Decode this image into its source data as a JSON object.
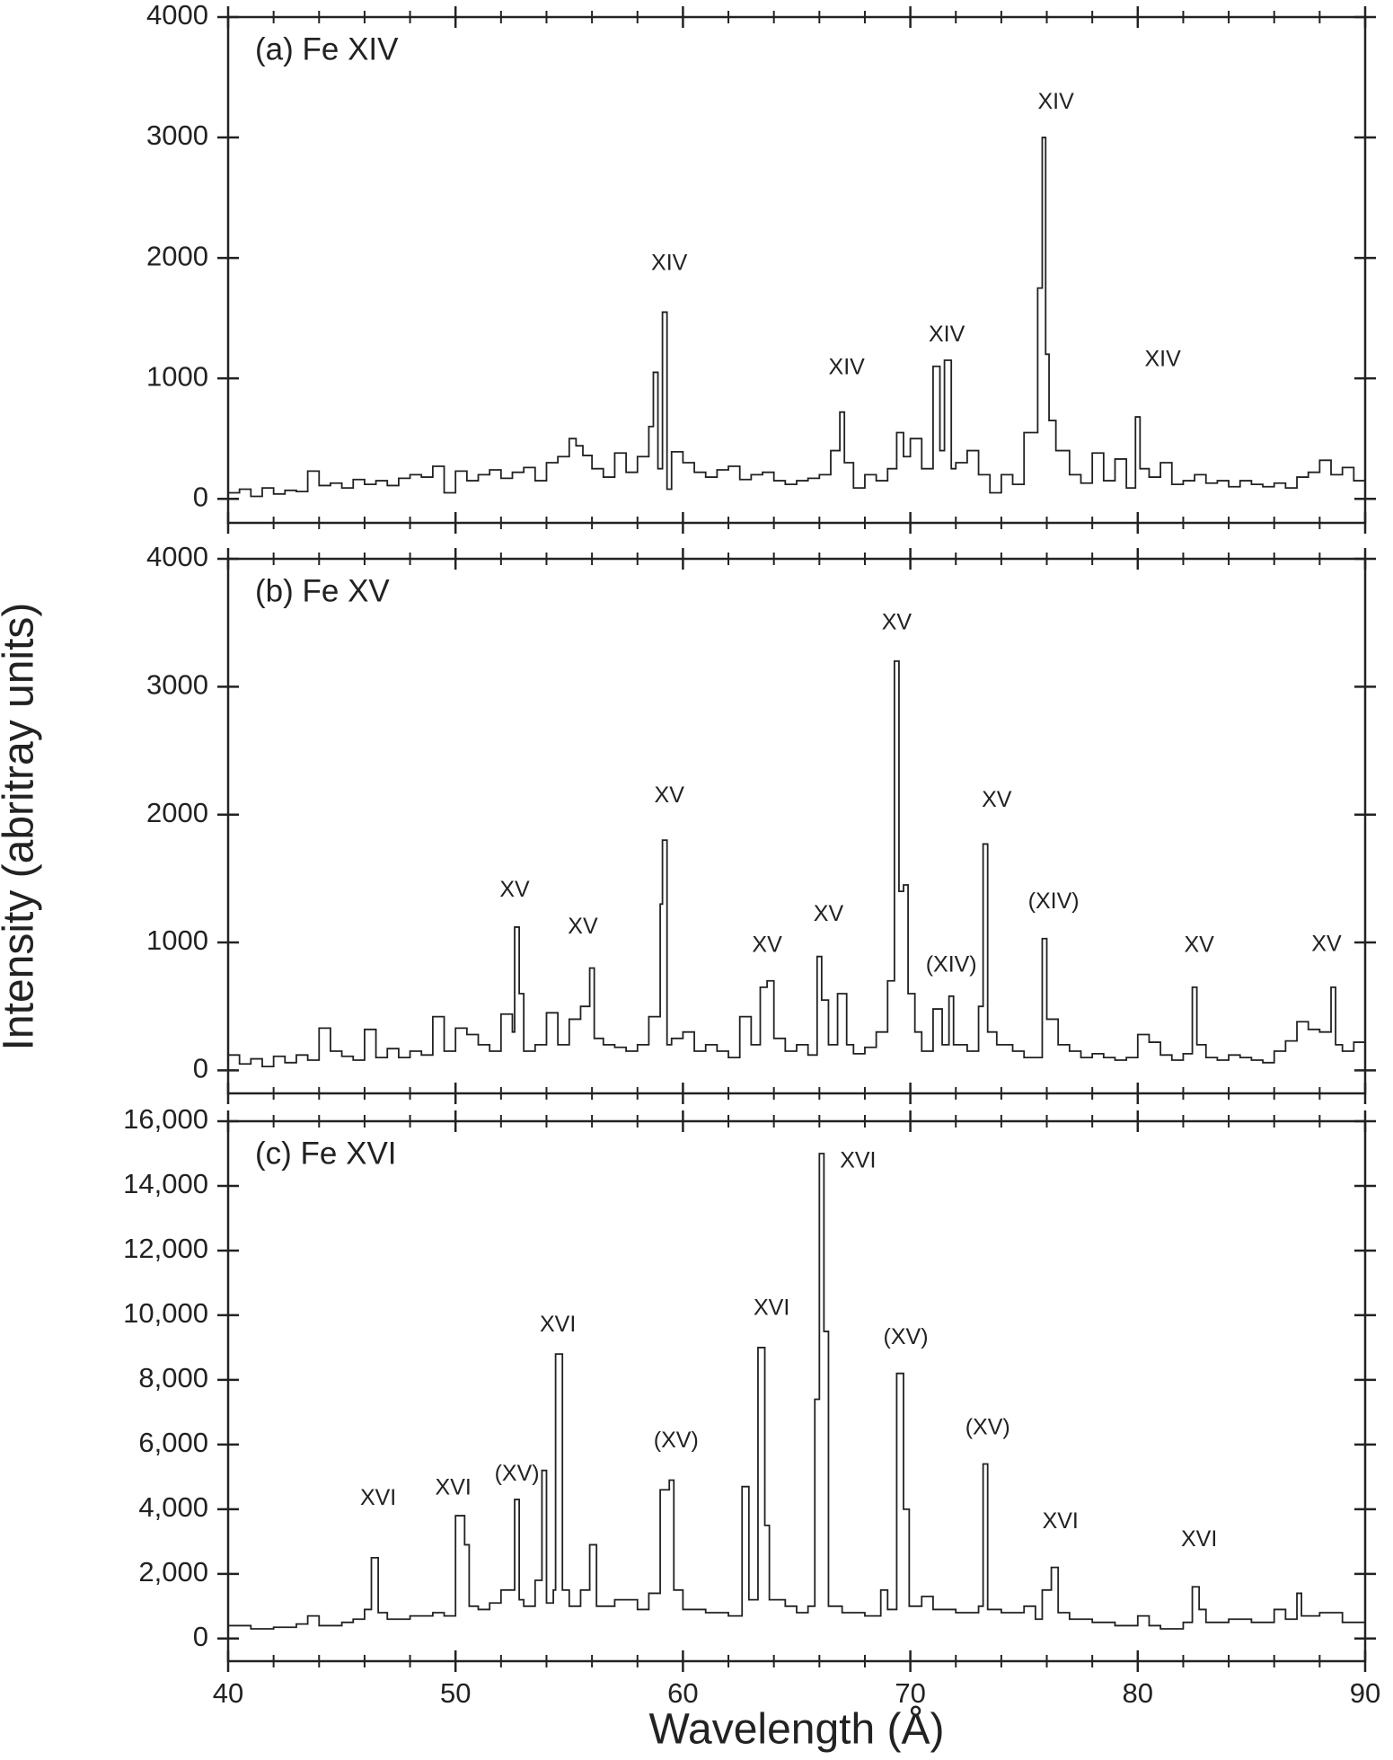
{
  "chart_data": [
    {
      "type": "line",
      "drawstyle": "steps-post",
      "title": "(a) Fe XIV",
      "color": "#222222",
      "xlim": [
        40,
        90
      ],
      "ylim": [
        -200,
        4000
      ],
      "yticks": [
        0,
        1000,
        2000,
        3000,
        4000
      ],
      "x": [
        40,
        40.5,
        41,
        41.5,
        42,
        42.5,
        43,
        43.5,
        44,
        44.5,
        45,
        45.5,
        46,
        46.5,
        47,
        47.5,
        48,
        48.5,
        49,
        49.5,
        50,
        50.5,
        51,
        51.5,
        52,
        52.5,
        53,
        53.5,
        54,
        54.5,
        55,
        55.3,
        55.6,
        56,
        56.5,
        57,
        57.5,
        58,
        58.5,
        58.7,
        58.9,
        59.1,
        59.3,
        59.5,
        60,
        60.5,
        61,
        61.5,
        62,
        62.5,
        63,
        63.5,
        64,
        64.5,
        65,
        65.5,
        66,
        66.5,
        66.9,
        67.1,
        67.5,
        68,
        68.5,
        69,
        69.4,
        69.7,
        70,
        70.5,
        71,
        71.3,
        71.5,
        71.8,
        72,
        72.5,
        73,
        73.5,
        74,
        74.5,
        75,
        75.6,
        75.8,
        75.95,
        76.1,
        76.4,
        77,
        77.5,
        78,
        78.5,
        79,
        79.5,
        79.9,
        80.1,
        80.5,
        81,
        81.5,
        82,
        82.5,
        83,
        83.5,
        84,
        84.5,
        85,
        85.5,
        86,
        86.5,
        87,
        87.5,
        88,
        88.5,
        89,
        89.5,
        90
      ],
      "values": [
        50,
        80,
        20,
        90,
        40,
        70,
        60,
        230,
        110,
        130,
        90,
        160,
        120,
        150,
        110,
        170,
        200,
        180,
        270,
        50,
        230,
        150,
        200,
        240,
        170,
        220,
        260,
        150,
        300,
        350,
        500,
        440,
        360,
        250,
        180,
        380,
        220,
        350,
        600,
        1050,
        250,
        1550,
        80,
        390,
        300,
        220,
        180,
        240,
        270,
        160,
        200,
        220,
        150,
        120,
        150,
        170,
        200,
        400,
        720,
        300,
        90,
        200,
        150,
        250,
        550,
        350,
        500,
        250,
        1100,
        400,
        1150,
        250,
        300,
        400,
        200,
        50,
        200,
        120,
        550,
        1750,
        3000,
        1200,
        650,
        400,
        200,
        130,
        380,
        150,
        330,
        90,
        680,
        250,
        180,
        300,
        120,
        150,
        200,
        130,
        150,
        100,
        150,
        120,
        100,
        130,
        90,
        180,
        220,
        320,
        200,
        260,
        150,
        150
      ],
      "annotations": [
        {
          "text": "XIV",
          "x": 59.4,
          "y": 1950
        },
        {
          "text": "XIV",
          "x": 67.2,
          "y": 1085
        },
        {
          "text": "XIV",
          "x": 71.6,
          "y": 1355
        },
        {
          "text": "XIV",
          "x": 76.4,
          "y": 3290
        },
        {
          "text": "XIV",
          "x": 81.1,
          "y": 1150
        }
      ]
    },
    {
      "type": "line",
      "drawstyle": "steps-post",
      "title": "(b) Fe XV",
      "color": "#222222",
      "y_label": "Intensity (abritray units)",
      "xlim": [
        40,
        90
      ],
      "ylim": [
        -180,
        4000
      ],
      "yticks": [
        0,
        1000,
        2000,
        3000,
        4000
      ],
      "x": [
        40,
        40.5,
        41,
        41.5,
        42,
        42.5,
        43,
        43.5,
        44,
        44.5,
        45,
        45.5,
        46,
        46.5,
        47,
        47.5,
        48,
        48.5,
        49,
        49.5,
        50,
        50.5,
        51,
        51.5,
        52,
        52.5,
        52.6,
        52.8,
        53,
        53.5,
        54,
        54.5,
        55,
        55.5,
        55.9,
        56.1,
        56.5,
        57,
        57.5,
        58,
        58.5,
        59,
        59.1,
        59.3,
        59.5,
        60,
        60.5,
        61,
        61.5,
        62,
        62.5,
        63,
        63.4,
        63.7,
        64,
        64.5,
        65,
        65.5,
        65.9,
        66.1,
        66.4,
        66.8,
        67.2,
        67.5,
        68,
        68.5,
        69,
        69.3,
        69.5,
        69.7,
        69.9,
        70.2,
        70.5,
        71,
        71.4,
        71.7,
        71.9,
        72.5,
        73,
        73.2,
        73.4,
        73.8,
        74.5,
        75,
        75.8,
        76,
        76.5,
        77,
        77.5,
        78,
        78.5,
        79,
        79.5,
        80,
        80.5,
        81,
        81.5,
        82,
        82.4,
        82.6,
        83,
        83.5,
        84,
        84.5,
        85,
        85.5,
        86,
        86.5,
        87,
        87.5,
        88,
        88.5,
        88.7,
        89,
        89.5,
        90
      ],
      "values": [
        120,
        50,
        90,
        30,
        110,
        60,
        120,
        80,
        330,
        150,
        110,
        80,
        320,
        100,
        170,
        100,
        150,
        120,
        420,
        150,
        330,
        280,
        200,
        150,
        440,
        300,
        1120,
        600,
        150,
        200,
        450,
        200,
        400,
        500,
        800,
        250,
        200,
        180,
        150,
        200,
        420,
        1300,
        1800,
        200,
        250,
        300,
        150,
        200,
        150,
        100,
        420,
        200,
        650,
        700,
        250,
        150,
        200,
        120,
        890,
        550,
        200,
        600,
        200,
        130,
        180,
        300,
        700,
        3200,
        1400,
        1450,
        600,
        300,
        150,
        480,
        200,
        580,
        200,
        150,
        500,
        1770,
        300,
        200,
        150,
        100,
        1030,
        400,
        200,
        150,
        100,
        130,
        100,
        80,
        100,
        280,
        220,
        120,
        80,
        130,
        650,
        200,
        100,
        80,
        120,
        100,
        80,
        60,
        150,
        230,
        380,
        320,
        300,
        650,
        200,
        150,
        220,
        220
      ],
      "annotations": [
        {
          "text": "XV",
          "x": 52.6,
          "y": 1405
        },
        {
          "text": "XV",
          "x": 55.6,
          "y": 1117
        },
        {
          "text": "XV",
          "x": 59.4,
          "y": 2144
        },
        {
          "text": "XV",
          "x": 63.7,
          "y": 973
        },
        {
          "text": "XV",
          "x": 66.4,
          "y": 1216
        },
        {
          "text": "XV",
          "x": 69.4,
          "y": 3495
        },
        {
          "text": "(XIV)",
          "x": 71.8,
          "y": 820
        },
        {
          "text": "XV",
          "x": 73.8,
          "y": 2108
        },
        {
          "text": "(XIV)",
          "x": 76.3,
          "y": 1315
        },
        {
          "text": "XV",
          "x": 82.7,
          "y": 973
        },
        {
          "text": "XV",
          "x": 88.3,
          "y": 980
        }
      ]
    },
    {
      "type": "line",
      "drawstyle": "steps-post",
      "title": "(c) Fe XVI",
      "color": "#222222",
      "x_label": "Wavelength (Å)",
      "xlim": [
        40,
        90
      ],
      "xticks": [
        40,
        50,
        60,
        70,
        80,
        90
      ],
      "ylim": [
        -700,
        16000
      ],
      "yticks": [
        0,
        {
          "value": 2000,
          "label": "2,000"
        },
        {
          "value": 4000,
          "label": "4,000"
        },
        {
          "value": 6000,
          "label": "6,000"
        },
        {
          "value": 8000,
          "label": "8,000"
        },
        {
          "value": 10000,
          "label": "10,000"
        },
        {
          "value": 12000,
          "label": "12,000"
        },
        {
          "value": 14000,
          "label": "14,000"
        },
        {
          "value": 16000,
          "label": "16,000"
        }
      ],
      "x": [
        40,
        41,
        42,
        43,
        43.5,
        44,
        45,
        45.5,
        46,
        46.3,
        46.6,
        47,
        48,
        49,
        49.5,
        50,
        50.4,
        50.6,
        51,
        51.5,
        52,
        52.6,
        52.8,
        53,
        53.5,
        53.8,
        54,
        54.3,
        54.4,
        54.7,
        55,
        55.5,
        55.9,
        56.2,
        57,
        58,
        58.5,
        59,
        59.4,
        59.6,
        60,
        61,
        62,
        62.6,
        62.9,
        63.3,
        63.6,
        63.8,
        64.5,
        65,
        65.5,
        65.8,
        66,
        66.2,
        66.4,
        67,
        68,
        68.7,
        69,
        69.4,
        69.7,
        69.95,
        70.5,
        71,
        72,
        73,
        73.2,
        73.4,
        74,
        75,
        75.5,
        75.8,
        76.2,
        76.5,
        77,
        78,
        79,
        80,
        80.5,
        81,
        82,
        82.4,
        82.7,
        83,
        84,
        85,
        86,
        86.5,
        87,
        87.2,
        88,
        89,
        90
      ],
      "values": [
        400,
        300,
        350,
        450,
        700,
        400,
        500,
        600,
        900,
        2500,
        800,
        600,
        700,
        800,
        700,
        3800,
        2900,
        1000,
        900,
        1100,
        1500,
        4300,
        1200,
        1000,
        1800,
        5200,
        1100,
        1500,
        8800,
        1500,
        1000,
        1500,
        2900,
        1000,
        1200,
        900,
        1400,
        4600,
        4900,
        1500,
        900,
        800,
        700,
        4700,
        1200,
        9000,
        3500,
        1200,
        1000,
        800,
        1000,
        7400,
        15000,
        9500,
        1000,
        800,
        700,
        1500,
        900,
        8200,
        4000,
        1000,
        1300,
        900,
        800,
        1000,
        5400,
        900,
        800,
        1000,
        600,
        1500,
        2200,
        800,
        600,
        500,
        400,
        700,
        400,
        300,
        500,
        1600,
        900,
        500,
        600,
        500,
        900,
        600,
        1400,
        700,
        800,
        500,
        600
      ],
      "annotations": [
        {
          "text": "XVI",
          "x": 46.6,
          "y": 4320
        },
        {
          "text": "XVI",
          "x": 49.9,
          "y": 4640
        },
        {
          "text": "(XV)",
          "x": 52.7,
          "y": 5070
        },
        {
          "text": "XVI",
          "x": 54.5,
          "y": 9680
        },
        {
          "text": "(XV)",
          "x": 59.7,
          "y": 6100
        },
        {
          "text": "XVI",
          "x": 63.9,
          "y": 10200
        },
        {
          "text": "XVI",
          "x": 67.7,
          "y": 14750
        },
        {
          "text": "(XV)",
          "x": 69.8,
          "y": 9290
        },
        {
          "text": "(XV)",
          "x": 73.4,
          "y": 6500
        },
        {
          "text": "XVI",
          "x": 76.6,
          "y": 3600
        },
        {
          "text": "XVI",
          "x": 82.7,
          "y": 3040
        }
      ]
    }
  ]
}
